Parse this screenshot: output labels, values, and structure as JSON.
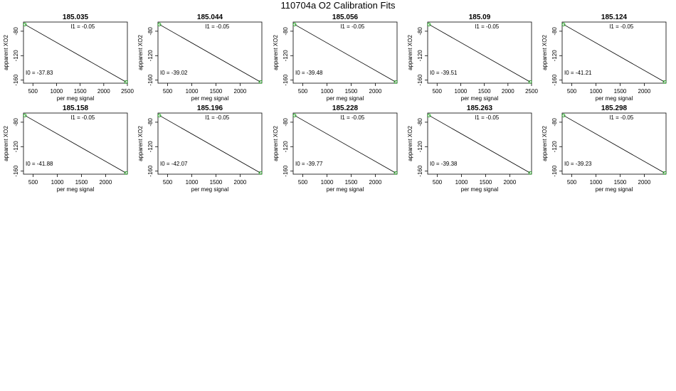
{
  "title": "110704a   O2 Calibration Fits",
  "xlabel": "per meg signal",
  "ylabel": "apparent XO2",
  "colors": {
    "line": "#000000",
    "points": "#00aa00"
  },
  "chart_data": [
    {
      "type": "scatter",
      "title": "185.035",
      "I0_label": "I0 =  -37.83",
      "I1_label": "I1 =  -0.05",
      "xlim": [
        300,
        2500
      ],
      "ylim": [
        -165,
        -65
      ],
      "xticks": [
        500,
        1000,
        1500,
        2000,
        2500
      ],
      "yticks": [
        -80,
        -120,
        -160
      ],
      "points": [
        [
          330,
          -69
        ],
        [
          2470,
          -163
        ]
      ]
    },
    {
      "type": "scatter",
      "title": "185.044",
      "I0_label": "I0 =  -39.02",
      "I1_label": "I1 =  -0.05",
      "xlim": [
        300,
        2450
      ],
      "ylim": [
        -165,
        -65
      ],
      "xticks": [
        500,
        1000,
        1500,
        2000
      ],
      "yticks": [
        -80,
        -120,
        -160
      ],
      "points": [
        [
          330,
          -69
        ],
        [
          2420,
          -163
        ]
      ]
    },
    {
      "type": "scatter",
      "title": "185.056",
      "I0_label": "I0 =  -39.48",
      "I1_label": "I1 =  -0.05",
      "xlim": [
        300,
        2450
      ],
      "ylim": [
        -165,
        -65
      ],
      "xticks": [
        500,
        1000,
        1500,
        2000
      ],
      "yticks": [
        -80,
        -120,
        -160
      ],
      "points": [
        [
          330,
          -69
        ],
        [
          2420,
          -163
        ]
      ]
    },
    {
      "type": "scatter",
      "title": "185.09",
      "I0_label": "I0 =  -39.51",
      "I1_label": "I1 =  -0.05",
      "xlim": [
        300,
        2500
      ],
      "ylim": [
        -165,
        -65
      ],
      "xticks": [
        500,
        1000,
        1500,
        2000,
        2500
      ],
      "yticks": [
        -80,
        -120,
        -160
      ],
      "points": [
        [
          330,
          -69
        ],
        [
          2470,
          -163
        ]
      ]
    },
    {
      "type": "scatter",
      "title": "185.124",
      "I0_label": "I0 =  -41.21",
      "I1_label": "I1 =  -0.05",
      "xlim": [
        300,
        2450
      ],
      "ylim": [
        -165,
        -65
      ],
      "xticks": [
        500,
        1000,
        1500,
        2000
      ],
      "yticks": [
        -80,
        -120,
        -160
      ],
      "points": [
        [
          330,
          -69
        ],
        [
          2420,
          -163
        ]
      ]
    },
    {
      "type": "scatter",
      "title": "185.158",
      "I0_label": "I0 =  -41.88",
      "I1_label": "I1 =  -0.05",
      "xlim": [
        300,
        2450
      ],
      "ylim": [
        -165,
        -65
      ],
      "xticks": [
        500,
        1000,
        1500,
        2000
      ],
      "yticks": [
        -80,
        -120,
        -160
      ],
      "points": [
        [
          330,
          -69
        ],
        [
          2420,
          -163
        ]
      ]
    },
    {
      "type": "scatter",
      "title": "185.196",
      "I0_label": "I0 =  -42.07",
      "I1_label": "I1 =  -0.05",
      "xlim": [
        300,
        2450
      ],
      "ylim": [
        -165,
        -65
      ],
      "xticks": [
        500,
        1000,
        1500,
        2000
      ],
      "yticks": [
        -80,
        -120,
        -160
      ],
      "points": [
        [
          330,
          -69
        ],
        [
          2420,
          -163
        ]
      ]
    },
    {
      "type": "scatter",
      "title": "185.228",
      "I0_label": "I0 =  -39.77",
      "I1_label": "I1 =  -0.05",
      "xlim": [
        300,
        2450
      ],
      "ylim": [
        -165,
        -65
      ],
      "xticks": [
        500,
        1000,
        1500,
        2000
      ],
      "yticks": [
        -80,
        -120,
        -160
      ],
      "points": [
        [
          330,
          -69
        ],
        [
          2420,
          -163
        ]
      ]
    },
    {
      "type": "scatter",
      "title": "185.263",
      "I0_label": "I0 =  -39.38",
      "I1_label": "I1 =  -0.05",
      "xlim": [
        300,
        2450
      ],
      "ylim": [
        -165,
        -65
      ],
      "xticks": [
        500,
        1000,
        1500,
        2000
      ],
      "yticks": [
        -80,
        -120,
        -160
      ],
      "points": [
        [
          330,
          -69
        ],
        [
          2420,
          -163
        ]
      ]
    },
    {
      "type": "scatter",
      "title": "185.298",
      "I0_label": "I0 =  -39.23",
      "I1_label": "I1 =  -0.05",
      "xlim": [
        300,
        2450
      ],
      "ylim": [
        -165,
        -65
      ],
      "xticks": [
        500,
        1000,
        1500,
        2000
      ],
      "yticks": [
        -80,
        -120,
        -160
      ],
      "points": [
        [
          330,
          -69
        ],
        [
          2420,
          -163
        ]
      ]
    }
  ]
}
